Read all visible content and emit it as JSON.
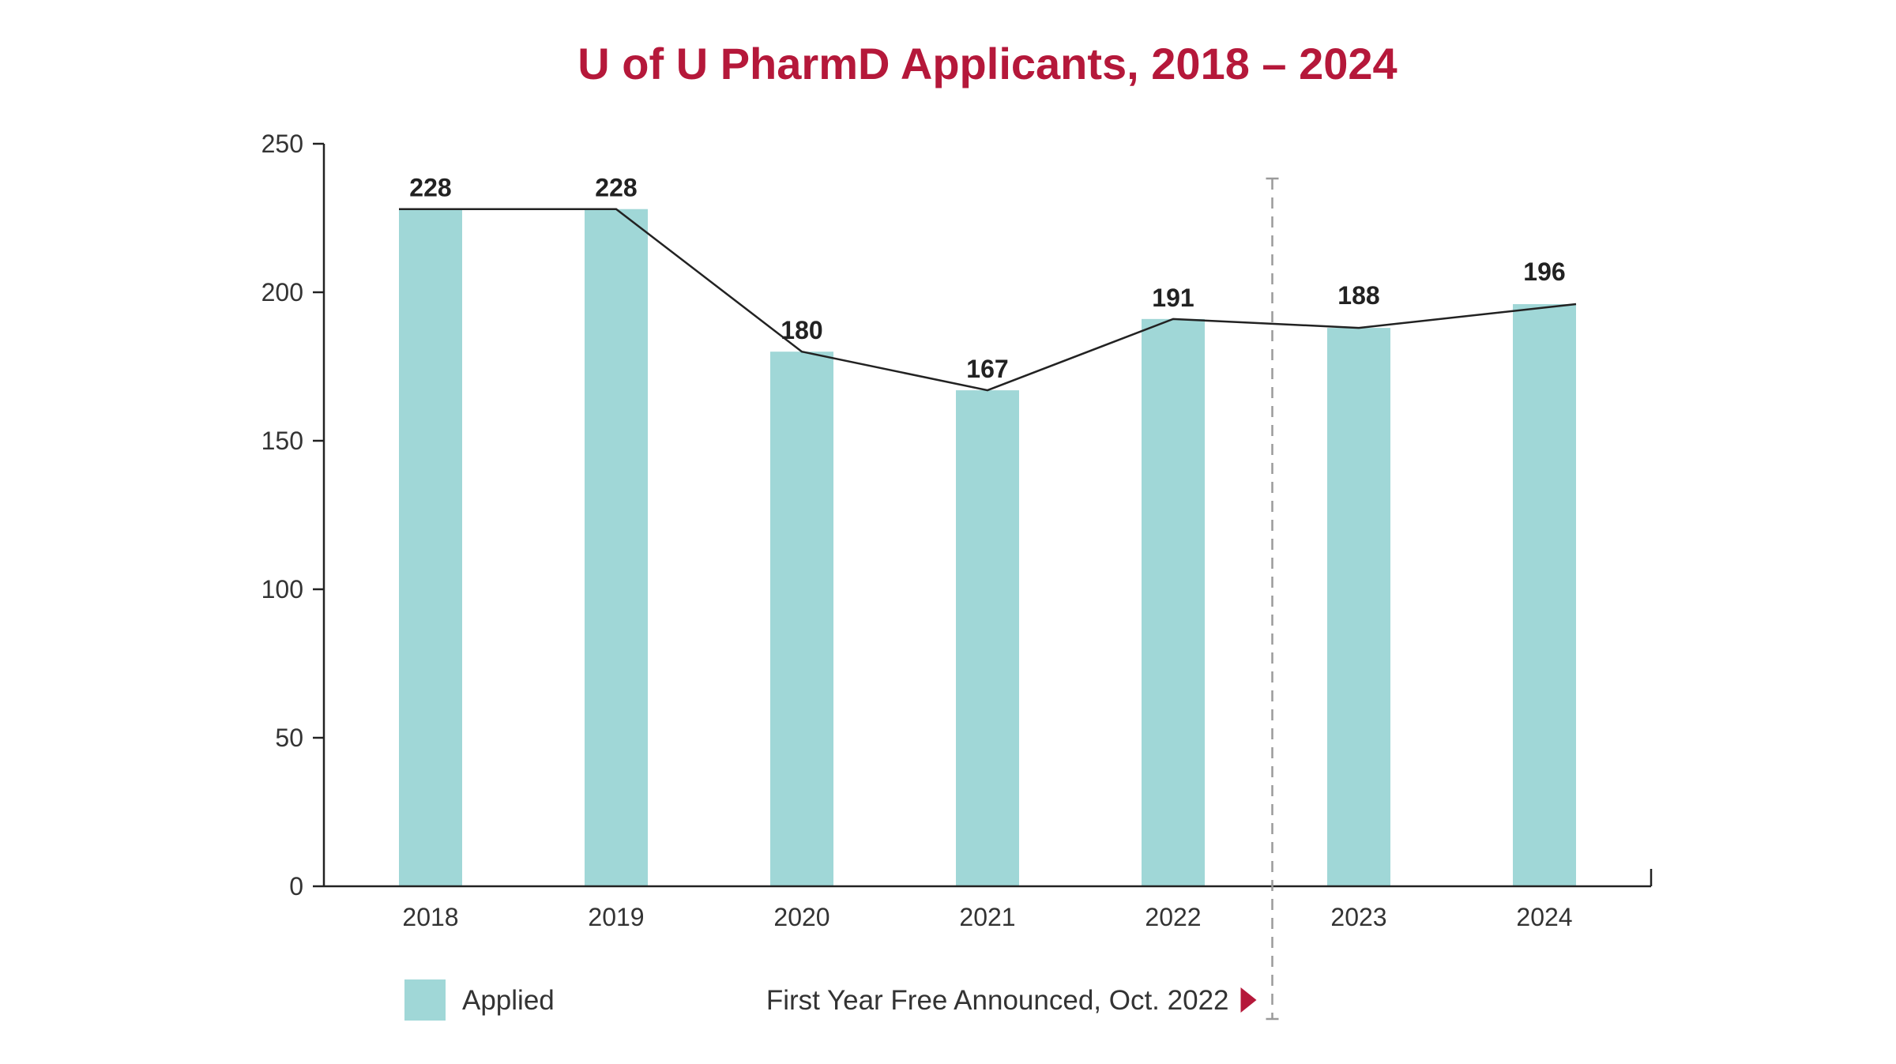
{
  "chart_data": {
    "type": "bar",
    "title": "U of U PharmD Applicants, 2018 – 2024",
    "categories": [
      "2018",
      "2019",
      "2020",
      "2021",
      "2022",
      "2023",
      "2024"
    ],
    "series": [
      {
        "name": "Applied",
        "values": [
          228,
          228,
          180,
          167,
          191,
          188,
          196
        ]
      }
    ],
    "overlay_line": true,
    "data_labels": [
      "228",
      "228",
      "180",
      "167",
      "191",
      "188",
      "196"
    ],
    "ylim": [
      0,
      250
    ],
    "yticks": [
      "0",
      "50",
      "100",
      "150",
      "200",
      "250"
    ],
    "xlabel": "",
    "ylabel": "",
    "grid": false,
    "legend": {
      "placement": "bottom-left",
      "label": "Applied"
    },
    "annotation": {
      "text": "First Year Free Announced, Oct. 2022",
      "between_categories": [
        "2022",
        "2023"
      ],
      "style": "dashed-vertical-line"
    }
  },
  "colors": {
    "title": "#b5183a",
    "bar": "#a0d7d7",
    "line": "#222222",
    "axis": "#222222",
    "marker": "#b5183a",
    "dashed_line": "#9a9a9a"
  }
}
